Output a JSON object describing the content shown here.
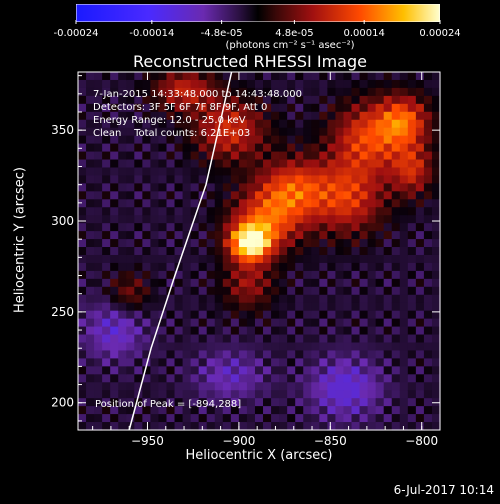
{
  "title": "Reconstructed RHESSI Image",
  "colorbar": {
    "ticks": [
      "-0.00024",
      "-0.00014",
      "-4.8e-05",
      "4.8e-05",
      "0.00014",
      "0.00024"
    ],
    "values": [
      -0.00024,
      -0.00014,
      -4.8e-05,
      4.8e-05,
      0.00014,
      0.00024
    ],
    "range": [
      -0.00024,
      0.00024
    ],
    "unit_label": "(photons cm⁻² s⁻¹ asec⁻²)"
  },
  "annotations": {
    "time": "7-Jan-2015 14:33:48.000 to 14:43:48.000",
    "detectors": "Detectors: 3F 5F 6F 7F 8F 9F, Att 0",
    "energy": "Energy Range: 12.0 - 25.0 keV",
    "clean": "Clean    Total counts: 6.21E+03",
    "peak": "Position of Peak = [-894,288]"
  },
  "stamp": "6-Jul-2017 10:14",
  "chart_data": {
    "type": "heatmap",
    "title": "Reconstructed RHESSI Image",
    "xlabel": "Heliocentric X (arcsec)",
    "ylabel": "Heliocentric Y (arcsec)",
    "xlim": [
      -988,
      -790
    ],
    "ylim": [
      185,
      382
    ],
    "xticks": [
      -950,
      -900,
      -850,
      -800
    ],
    "yticks": [
      200,
      250,
      300,
      350
    ],
    "xtick_labels": [
      "−950",
      "−900",
      "−850",
      "−800"
    ],
    "ytick_labels": [
      "200",
      "250",
      "300",
      "350"
    ],
    "colormap": "blue-purple-black-red-yellow-white",
    "peak": [
      -894,
      288
    ],
    "sources": [
      {
        "x": -894,
        "y": 288,
        "amp": 1.0,
        "sx": 8,
        "sy": 7
      },
      {
        "x": -885,
        "y": 300,
        "amp": 0.55,
        "sx": 14,
        "sy": 12
      },
      {
        "x": -870,
        "y": 318,
        "amp": 0.55,
        "sx": 14,
        "sy": 12
      },
      {
        "x": -840,
        "y": 312,
        "amp": 0.5,
        "sx": 14,
        "sy": 14
      },
      {
        "x": -830,
        "y": 345,
        "amp": 0.55,
        "sx": 14,
        "sy": 14
      },
      {
        "x": -810,
        "y": 355,
        "amp": 0.6,
        "sx": 10,
        "sy": 10
      },
      {
        "x": -805,
        "y": 328,
        "amp": 0.45,
        "sx": 8,
        "sy": 10
      },
      {
        "x": -905,
        "y": 350,
        "amp": 0.5,
        "sx": 14,
        "sy": 12
      },
      {
        "x": -930,
        "y": 372,
        "amp": 0.45,
        "sx": 12,
        "sy": 8
      },
      {
        "x": -895,
        "y": 265,
        "amp": 0.35,
        "sx": 10,
        "sy": 10
      },
      {
        "x": -960,
        "y": 260,
        "amp": 0.3,
        "sx": 8,
        "sy": 8
      },
      {
        "x": -842,
        "y": 208,
        "amp": -0.35,
        "sx": 14,
        "sy": 12
      },
      {
        "x": -968,
        "y": 240,
        "amp": -0.3,
        "sx": 12,
        "sy": 12
      },
      {
        "x": -905,
        "y": 215,
        "amp": -0.25,
        "sx": 14,
        "sy": 10
      }
    ],
    "limb_curve": [
      [
        -960,
        185
      ],
      [
        -948,
        230
      ],
      [
        -935,
        270
      ],
      [
        -918,
        320
      ],
      [
        -904,
        382
      ]
    ]
  }
}
